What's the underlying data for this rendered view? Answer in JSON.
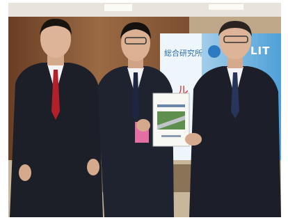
{
  "banner": {
    "text": "LIT"
  }
}
